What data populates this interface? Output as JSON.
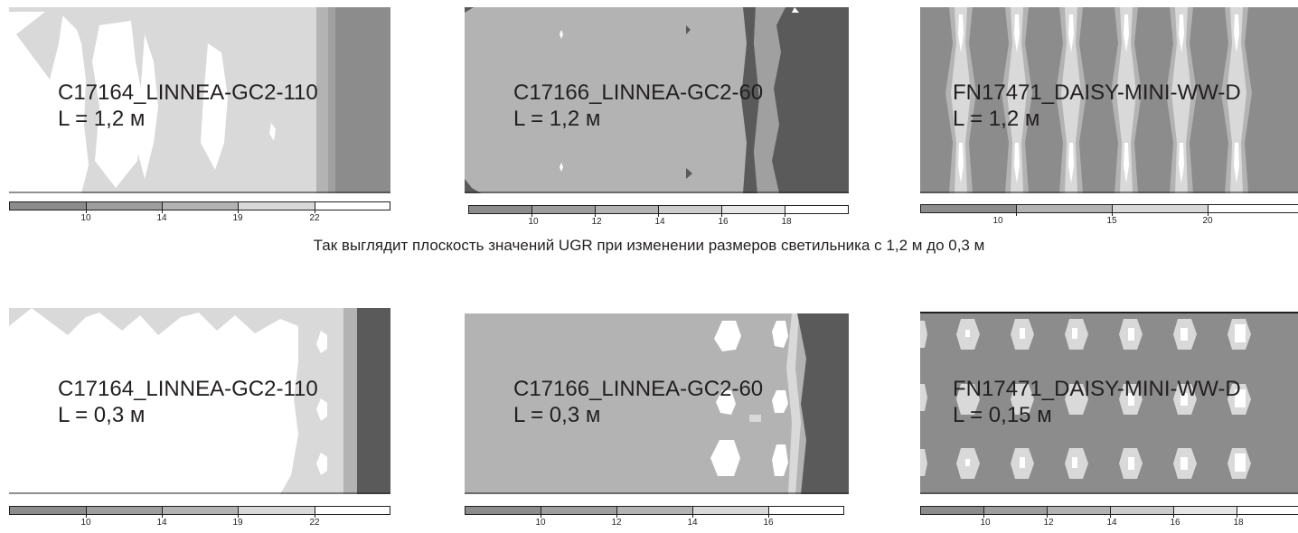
{
  "caption": "Так выглядит плоскость значений UGR при изменении размеров светильника с 1,2 м до 0,3 м",
  "colors": {
    "white": "#ffffff",
    "light": "#d9d9d9",
    "mid": "#b3b3b3",
    "midDark": "#8c8c8c",
    "dark": "#5a5a5a",
    "text": "#231f20"
  },
  "panels": [
    {
      "name": "C17164_LINNEA-GC2-110",
      "length": "L = 1,2 м",
      "legend_ticks": [
        "10",
        "14",
        "19",
        "22"
      ]
    },
    {
      "name": "C17166_LINNEA-GC2-60",
      "length": "L = 1,2 м",
      "legend_ticks": [
        "10",
        "12",
        "14",
        "16",
        "18"
      ]
    },
    {
      "name": "FN17471_DAISY-MINI-WW-D",
      "length": "L = 1,2 м",
      "legend_ticks": [
        "10",
        "15",
        "20"
      ]
    },
    {
      "name": "C17164_LINNEA-GC2-110",
      "length": "L = 0,3 м",
      "legend_ticks": [
        "10",
        "14",
        "19",
        "22"
      ]
    },
    {
      "name": "C17166_LINNEA-GC2-60",
      "length": "L = 0,3 м",
      "legend_ticks": [
        "10",
        "12",
        "14",
        "16"
      ]
    },
    {
      "name": "FN17471_DAISY-MINI-WW-D",
      "length": "L = 0,15 м",
      "legend_ticks": [
        "10",
        "12",
        "14",
        "16",
        "18"
      ]
    }
  ],
  "chart_data": [
    {
      "type": "heatmap",
      "title": "C17164_LINNEA-GC2-110",
      "subtitle": "L = 1,2 м",
      "legend_values": [
        10,
        14,
        19,
        22
      ]
    },
    {
      "type": "heatmap",
      "title": "C17166_LINNEA-GC2-60",
      "subtitle": "L = 1,2 м",
      "legend_values": [
        10,
        12,
        14,
        16,
        18
      ]
    },
    {
      "type": "heatmap",
      "title": "FN17471_DAISY-MINI-WW-D",
      "subtitle": "L = 1,2 м",
      "legend_values": [
        10,
        15,
        20
      ]
    },
    {
      "type": "heatmap",
      "title": "C17164_LINNEA-GC2-110",
      "subtitle": "L = 0,3 м",
      "legend_values": [
        10,
        14,
        19,
        22
      ]
    },
    {
      "type": "heatmap",
      "title": "C17166_LINNEA-GC2-60",
      "subtitle": "L = 0,3 м",
      "legend_values": [
        10,
        12,
        14,
        16
      ]
    },
    {
      "type": "heatmap",
      "title": "FN17471_DAISY-MINI-WW-D",
      "subtitle": "L = 0,15 м",
      "legend_values": [
        10,
        12,
        14,
        16,
        18
      ]
    }
  ]
}
